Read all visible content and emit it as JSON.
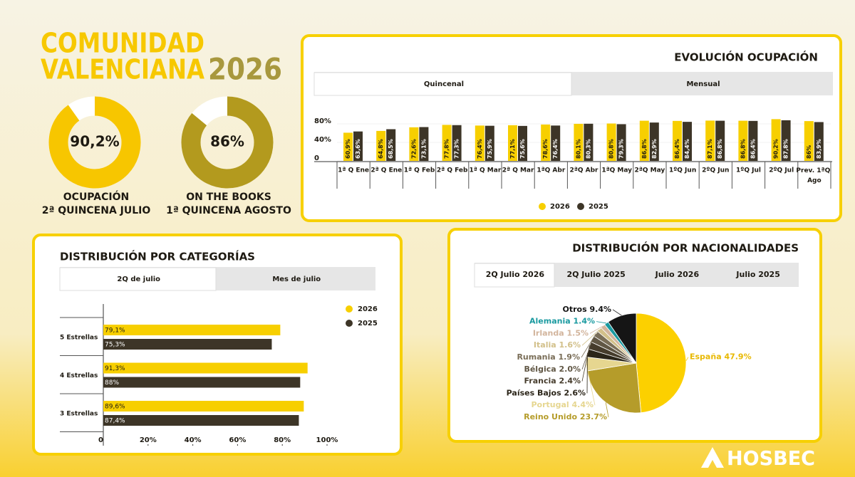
{
  "header": {
    "title_line1": "COMUNIDAD",
    "title_line2": "VALENCIANA",
    "year": "2026"
  },
  "logo": "HOSBEC",
  "chart_data": [
    {
      "type": "donut",
      "values": [
        90.2
      ],
      "value_labels": [
        "90,2%"
      ],
      "color": "#f7c600",
      "title": "OCUPACIÓN",
      "subtitle": "2ª QUINCENA JULIO"
    },
    {
      "type": "donut",
      "values": [
        86
      ],
      "value_labels": [
        "86%"
      ],
      "color": "#b39a1e",
      "title": "ON THE BOOKS",
      "subtitle": "1ª QUINCENA AGOSTO"
    },
    {
      "type": "bar",
      "title": "EVOLUCIÓN OCUPACIÓN",
      "tabs": [
        "Quincenal",
        "Mensual"
      ],
      "categories": [
        "1ª Q Ene",
        "2ª Q Ene",
        "1ª Q Feb",
        "2ª Q Feb",
        "1ª Q Mar",
        "2ª Q Mar",
        "1ªQ Abr",
        "2ªQ Abr",
        "1ªQ May",
        "2ªQ May",
        "1ºQ Jun",
        "2ºQ Jun",
        "1ºQ Jul",
        "2ºQ Jul",
        "Prev. 1ªQ Ago"
      ],
      "series": [
        {
          "name": "2026",
          "color": "#f7cf00",
          "values": [
            60.9,
            64.8,
            72.6,
            77.8,
            76.4,
            77.1,
            78.6,
            80.1,
            80.8,
            86.8,
            86.4,
            87.1,
            86.8,
            90.2,
            86
          ],
          "value_labels": [
            "60,9%",
            "64,8%",
            "72,6%",
            "77,8%",
            "76,4%",
            "77,1%",
            "78,6%",
            "80,1%",
            "80,8%",
            "86,8%",
            "86,4%",
            "87,1%",
            "86,8%",
            "90,2%",
            "86%"
          ]
        },
        {
          "name": "2025",
          "color": "#3d3527",
          "values": [
            63.6,
            68.5,
            73.1,
            77.3,
            75.9,
            75.6,
            76.4,
            80.3,
            79.3,
            82.9,
            84.4,
            86.8,
            86.4,
            87.8,
            83.9
          ],
          "value_labels": [
            "63,6%",
            "68,5%",
            "73,1%",
            "77,3%",
            "75,9%",
            "75,6%",
            "76,4%",
            "80,3%",
            "79,3%",
            "82,9%",
            "84,4%",
            "86,8%",
            "86,4%",
            "87,8%",
            "83,9%"
          ]
        }
      ],
      "ylim": [
        0,
        80
      ],
      "yticks": [
        0,
        {
          "value": 40,
          "label": "40%"
        },
        {
          "value": 80,
          "label": "80%"
        }
      ],
      "legend": "bottom"
    },
    {
      "type": "hbar",
      "title": "DISTRIBUCIÓN POR CATEGORÍAS",
      "tabs": [
        "2Q de julio",
        "Mes de julio"
      ],
      "categories": [
        "5 Estrellas",
        "4 Estrellas",
        "3 Estrellas"
      ],
      "series": [
        {
          "name": "2026",
          "color": "#f7cf00",
          "values": [
            79.1,
            91.3,
            89.6
          ],
          "value_labels": [
            "79,1%",
            "91,3%",
            "89,6%"
          ]
        },
        {
          "name": "2025",
          "color": "#3d3527",
          "values": [
            75.3,
            88,
            87.4
          ],
          "value_labels": [
            "75,3%",
            "88%",
            "87,4%"
          ]
        }
      ],
      "xlim": [
        0,
        100
      ],
      "xticks": [
        0,
        {
          "value": 20,
          "label": "20%"
        },
        {
          "value": 40,
          "label": "40%"
        },
        {
          "value": 60,
          "label": "60%"
        },
        {
          "value": 80,
          "label": "80%"
        },
        {
          "value": 100,
          "label": "100%"
        }
      ],
      "legend": "right"
    },
    {
      "type": "pie",
      "title": "DISTRIBUCIÓN POR NACIONALIDADES",
      "tabs": [
        "2Q Julio 2026",
        "2Q Julio 2025",
        "Julio 2026",
        "Julio 2025"
      ],
      "categories": [
        "España",
        "Reino Unido",
        "Portugal",
        "Países Bajos",
        "Francia",
        "Bélgica",
        "Rumania",
        "Italia",
        "Irlanda",
        "Alemania",
        "Otros"
      ],
      "values": [
        47.9,
        23.7,
        4.4,
        2.6,
        2.4,
        2.0,
        1.9,
        1.6,
        1.5,
        1.4,
        9.4
      ],
      "value_labels": [
        "España 47.9%",
        "Reino Unido 23.7%",
        "Portugal 4.4%",
        "Países Bajos 2.6%",
        "Francia 2.4%",
        "Bélgica 2.0%",
        "Rumania 1.9%",
        "Italia 1.6%",
        "Irlanda 1.5%",
        "Alemania 1.4%",
        "Otros 9.4%"
      ],
      "colors": [
        "#fcd000",
        "#b59c2a",
        "#e6d690",
        "#2b2519",
        "#463c2c",
        "#615745",
        "#7a6e58",
        "#d2c08a",
        "#d2b49c",
        "#1a9aa0",
        "#151515"
      ]
    }
  ]
}
